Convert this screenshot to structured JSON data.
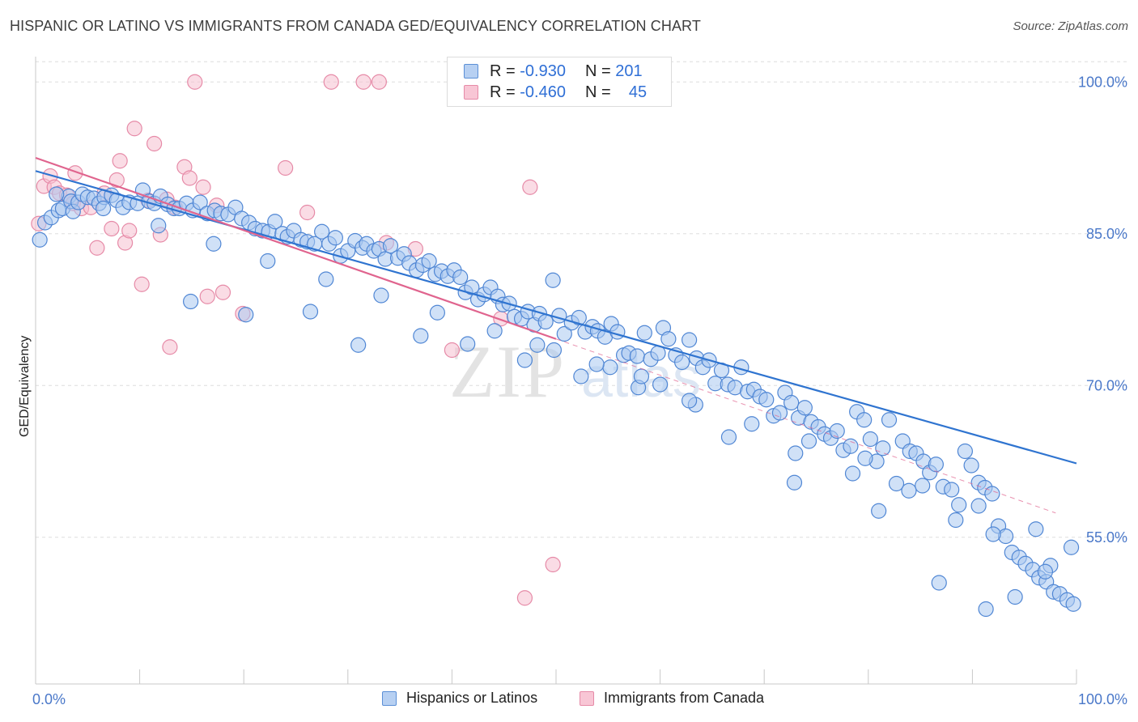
{
  "title": "HISPANIC OR LATINO VS IMMIGRANTS FROM CANADA GED/EQUIVALENCY CORRELATION CHART",
  "source": "Source: ZipAtlas.com",
  "legend": {
    "row1": {
      "r_label": "R =",
      "r_value": "-0.930",
      "n_label": "N =",
      "n_value": "201"
    },
    "row2": {
      "r_label": "R =",
      "r_value": "-0.460",
      "n_label": "N =",
      "n_value": "45"
    }
  },
  "colors": {
    "blue_fill": "#a9c8f0",
    "blue_stroke": "#4f86d4",
    "blue_line": "#2f74d0",
    "pink_fill": "#f6bfd0",
    "pink_stroke": "#e68aa7",
    "pink_line": "#e0648e",
    "tick_text": "#4a78c9",
    "grid": "#dddddd"
  },
  "chart_data": {
    "type": "scatter",
    "xlabel": "",
    "ylabel": "GED/Equivalency",
    "x_tick_labels": [
      "0.0%",
      "100.0%"
    ],
    "y_tick_labels": [
      "100.0%",
      "85.0%",
      "70.0%",
      "55.0%"
    ],
    "y_ticks": [
      100,
      85,
      70,
      55
    ],
    "xlim": [
      0,
      100
    ],
    "ylim": [
      40.5,
      102.5
    ],
    "grid": "horizontal dashed",
    "legend_position": "top-center",
    "watermark": "ZIPatlas",
    "series": [
      {
        "name": "Hispanics or Latinos",
        "trend": {
          "x": [
            0,
            100
          ],
          "y": [
            91.2,
            62.3
          ]
        },
        "points": [
          [
            0.4,
            84.4
          ],
          [
            0.9,
            86.1
          ],
          [
            1.5,
            86.6
          ],
          [
            2.2,
            87.3
          ],
          [
            2.6,
            87.5
          ],
          [
            3.2,
            88.7
          ],
          [
            3.4,
            88.2
          ],
          [
            3.6,
            87.2
          ],
          [
            4.1,
            88.1
          ],
          [
            4.5,
            88.9
          ],
          [
            5.0,
            88.6
          ],
          [
            5.6,
            88.5
          ],
          [
            6.1,
            88.0
          ],
          [
            6.6,
            88.6
          ],
          [
            7.3,
            88.8
          ],
          [
            7.8,
            88.3
          ],
          [
            8.4,
            87.6
          ],
          [
            9.0,
            88.1
          ],
          [
            9.8,
            88.0
          ],
          [
            10.3,
            89.3
          ],
          [
            10.9,
            88.2
          ],
          [
            11.4,
            88.0
          ],
          [
            12.0,
            88.7
          ],
          [
            12.7,
            87.9
          ],
          [
            13.3,
            87.5
          ],
          [
            13.8,
            87.5
          ],
          [
            14.5,
            88.0
          ],
          [
            15.1,
            87.3
          ],
          [
            15.8,
            88.1
          ],
          [
            16.5,
            87.0
          ],
          [
            17.2,
            87.3
          ],
          [
            17.8,
            87.0
          ],
          [
            18.5,
            86.9
          ],
          [
            19.2,
            87.6
          ],
          [
            19.8,
            86.5
          ],
          [
            20.5,
            86.1
          ],
          [
            21.1,
            85.5
          ],
          [
            21.8,
            85.3
          ],
          [
            22.4,
            85.2
          ],
          [
            23.0,
            86.2
          ],
          [
            23.7,
            85.0
          ],
          [
            24.2,
            84.7
          ],
          [
            24.8,
            85.3
          ],
          [
            25.5,
            84.4
          ],
          [
            26.1,
            84.2
          ],
          [
            26.8,
            84.0
          ],
          [
            27.5,
            85.2
          ],
          [
            28.2,
            84.0
          ],
          [
            28.8,
            84.6
          ],
          [
            29.3,
            82.8
          ],
          [
            30.0,
            83.3
          ],
          [
            30.7,
            84.3
          ],
          [
            31.4,
            83.6
          ],
          [
            31.8,
            84.0
          ],
          [
            32.5,
            83.3
          ],
          [
            33.0,
            83.5
          ],
          [
            33.6,
            82.5
          ],
          [
            34.1,
            83.8
          ],
          [
            34.8,
            82.6
          ],
          [
            35.4,
            83.0
          ],
          [
            35.9,
            82.1
          ],
          [
            36.6,
            81.4
          ],
          [
            37.2,
            81.9
          ],
          [
            37.8,
            82.3
          ],
          [
            38.4,
            81.0
          ],
          [
            39.0,
            81.3
          ],
          [
            39.6,
            80.8
          ],
          [
            40.2,
            81.4
          ],
          [
            40.8,
            80.7
          ],
          [
            41.3,
            79.2
          ],
          [
            41.9,
            79.7
          ],
          [
            42.5,
            78.5
          ],
          [
            43.1,
            79.0
          ],
          [
            43.7,
            79.7
          ],
          [
            44.4,
            78.8
          ],
          [
            44.9,
            78.0
          ],
          [
            45.5,
            78.1
          ],
          [
            46.0,
            76.8
          ],
          [
            46.7,
            76.6
          ],
          [
            47.3,
            77.3
          ],
          [
            47.9,
            76.0
          ],
          [
            48.4,
            77.1
          ],
          [
            49.0,
            76.3
          ],
          [
            49.7,
            80.4
          ],
          [
            50.3,
            76.9
          ],
          [
            50.8,
            75.1
          ],
          [
            51.5,
            76.2
          ],
          [
            52.2,
            76.7
          ],
          [
            52.8,
            75.3
          ],
          [
            53.5,
            75.8
          ],
          [
            54.0,
            75.4
          ],
          [
            54.7,
            74.8
          ],
          [
            55.3,
            76.1
          ],
          [
            55.9,
            75.3
          ],
          [
            56.5,
            73.0
          ],
          [
            57.0,
            73.2
          ],
          [
            57.8,
            72.9
          ],
          [
            58.5,
            75.2
          ],
          [
            59.1,
            72.6
          ],
          [
            59.8,
            73.2
          ],
          [
            60.3,
            75.7
          ],
          [
            60.8,
            74.6
          ],
          [
            61.5,
            73.0
          ],
          [
            62.1,
            72.3
          ],
          [
            62.8,
            74.5
          ],
          [
            63.5,
            72.7
          ],
          [
            64.1,
            71.8
          ],
          [
            64.7,
            72.5
          ],
          [
            65.3,
            70.2
          ],
          [
            65.9,
            71.5
          ],
          [
            66.5,
            70.1
          ],
          [
            67.2,
            69.8
          ],
          [
            67.8,
            71.8
          ],
          [
            68.4,
            69.4
          ],
          [
            69.0,
            69.6
          ],
          [
            69.6,
            68.9
          ],
          [
            70.2,
            68.6
          ],
          [
            70.9,
            67.0
          ],
          [
            71.5,
            67.3
          ],
          [
            72.0,
            69.3
          ],
          [
            72.6,
            68.3
          ],
          [
            73.3,
            66.8
          ],
          [
            73.9,
            67.8
          ],
          [
            74.5,
            66.4
          ],
          [
            75.2,
            65.9
          ],
          [
            75.8,
            65.2
          ],
          [
            76.4,
            64.8
          ],
          [
            77.0,
            65.5
          ],
          [
            77.6,
            63.6
          ],
          [
            78.3,
            64.0
          ],
          [
            78.9,
            67.4
          ],
          [
            79.6,
            66.6
          ],
          [
            80.2,
            64.7
          ],
          [
            80.8,
            62.5
          ],
          [
            81.4,
            63.8
          ],
          [
            82.0,
            66.6
          ],
          [
            82.7,
            60.3
          ],
          [
            83.3,
            64.5
          ],
          [
            84.0,
            63.5
          ],
          [
            84.6,
            63.3
          ],
          [
            85.3,
            62.5
          ],
          [
            85.9,
            61.4
          ],
          [
            86.5,
            62.2
          ],
          [
            87.2,
            60.0
          ],
          [
            88.0,
            59.7
          ],
          [
            88.7,
            58.2
          ],
          [
            89.3,
            63.5
          ],
          [
            89.9,
            62.1
          ],
          [
            90.6,
            60.4
          ],
          [
            91.2,
            59.9
          ],
          [
            91.9,
            59.3
          ],
          [
            92.5,
            56.1
          ],
          [
            93.2,
            55.1
          ],
          [
            93.8,
            53.5
          ],
          [
            94.5,
            53.0
          ],
          [
            95.1,
            52.4
          ],
          [
            95.8,
            51.8
          ],
          [
            96.4,
            51.0
          ],
          [
            97.1,
            50.6
          ],
          [
            97.8,
            49.6
          ],
          [
            98.4,
            49.4
          ],
          [
            99.1,
            48.8
          ],
          [
            99.7,
            48.4
          ],
          [
            14.9,
            78.3
          ],
          [
            20.2,
            77.0
          ],
          [
            26.4,
            77.3
          ],
          [
            31.0,
            74.0
          ],
          [
            37.0,
            74.9
          ],
          [
            41.5,
            74.1
          ],
          [
            47.0,
            72.5
          ],
          [
            52.4,
            70.9
          ],
          [
            57.9,
            69.8
          ],
          [
            63.4,
            68.1
          ],
          [
            68.8,
            66.2
          ],
          [
            74.3,
            64.5
          ],
          [
            79.7,
            62.8
          ],
          [
            85.2,
            60.1
          ],
          [
            90.6,
            58.1
          ],
          [
            96.1,
            55.8
          ],
          [
            99.5,
            54.0
          ],
          [
            66.6,
            64.9
          ],
          [
            73.0,
            63.3
          ],
          [
            78.5,
            61.3
          ],
          [
            83.9,
            59.6
          ],
          [
            88.4,
            56.7
          ],
          [
            92.0,
            55.3
          ],
          [
            97.5,
            52.2
          ],
          [
            60.0,
            70.1
          ],
          [
            55.2,
            71.8
          ],
          [
            49.8,
            73.5
          ],
          [
            44.1,
            75.4
          ],
          [
            38.6,
            77.2
          ],
          [
            33.2,
            78.9
          ],
          [
            27.9,
            80.5
          ],
          [
            22.3,
            82.3
          ],
          [
            17.1,
            84.0
          ],
          [
            11.8,
            85.8
          ],
          [
            6.5,
            87.5
          ],
          [
            2.0,
            88.9
          ],
          [
            86.8,
            50.5
          ],
          [
            91.3,
            47.9
          ],
          [
            94.1,
            49.1
          ],
          [
            97.0,
            51.6
          ],
          [
            72.9,
            60.4
          ],
          [
            81.0,
            57.6
          ],
          [
            62.8,
            68.5
          ],
          [
            58.2,
            70.9
          ],
          [
            53.9,
            72.1
          ],
          [
            48.2,
            74.0
          ]
        ]
      },
      {
        "name": "Immigrants from Canada",
        "trend": {
          "x": [
            0,
            50
          ],
          "y": [
            92.5,
            74.6
          ]
        },
        "trend_dashed": {
          "x": [
            50,
            98
          ],
          "y": [
            74.6,
            57.4
          ]
        },
        "points": [
          [
            0.3,
            86.0
          ],
          [
            0.8,
            89.7
          ],
          [
            1.4,
            90.7
          ],
          [
            1.8,
            89.6
          ],
          [
            2.3,
            89.0
          ],
          [
            3.0,
            88.8
          ],
          [
            3.6,
            88.0
          ],
          [
            4.4,
            87.5
          ],
          [
            5.3,
            87.6
          ],
          [
            5.9,
            83.6
          ],
          [
            6.6,
            89.0
          ],
          [
            7.3,
            85.5
          ],
          [
            7.8,
            90.3
          ],
          [
            8.6,
            84.1
          ],
          [
            9.0,
            85.3
          ],
          [
            9.5,
            95.4
          ],
          [
            10.2,
            80.0
          ],
          [
            10.8,
            88.3
          ],
          [
            11.4,
            93.9
          ],
          [
            12.0,
            84.9
          ],
          [
            12.6,
            88.4
          ],
          [
            12.9,
            73.8
          ],
          [
            13.4,
            87.6
          ],
          [
            14.3,
            91.6
          ],
          [
            14.8,
            90.5
          ],
          [
            15.3,
            100.0
          ],
          [
            16.1,
            89.6
          ],
          [
            16.5,
            78.8
          ],
          [
            17.4,
            87.8
          ],
          [
            18.0,
            79.2
          ],
          [
            19.9,
            77.1
          ],
          [
            24.0,
            91.5
          ],
          [
            26.1,
            87.1
          ],
          [
            28.4,
            100.0
          ],
          [
            31.5,
            100.0
          ],
          [
            33.0,
            100.0
          ],
          [
            33.7,
            84.1
          ],
          [
            44.7,
            76.6
          ],
          [
            47.5,
            89.6
          ],
          [
            49.7,
            52.3
          ],
          [
            47.0,
            49.0
          ],
          [
            40.0,
            73.5
          ],
          [
            36.5,
            83.5
          ],
          [
            3.8,
            91.0
          ],
          [
            8.1,
            92.2
          ]
        ]
      }
    ]
  },
  "bottom_legend": {
    "item1": "Hispanics or Latinos",
    "item2": "Immigrants from Canada"
  }
}
